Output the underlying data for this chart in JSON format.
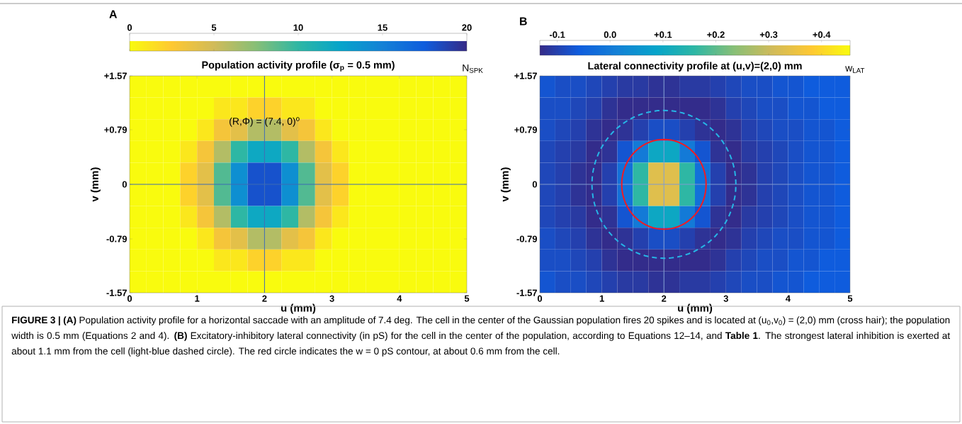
{
  "chart_data": [
    {
      "type": "heatmap",
      "title": "Population activity profile (σ$_{p}$ = 0.5 mm)",
      "xlabel": "u (mm)",
      "ylabel": "v (mm)",
      "clabel": "N$_{SPK}$",
      "annotations": [
        "A",
        "(R,Φ) = (7.4, 0)$^{o}$"
      ],
      "x": [
        0.125,
        0.375,
        0.625,
        0.875,
        1.125,
        1.375,
        1.625,
        1.875,
        2.125,
        2.375,
        2.625,
        2.875,
        3.125,
        3.375,
        3.625,
        3.875,
        4.125,
        4.375,
        4.625,
        4.875
      ],
      "y": [
        1.413,
        1.099,
        0.785,
        0.471,
        0.157,
        -0.157,
        -0.471,
        -0.785,
        -1.099,
        -1.413
      ],
      "xlim": [
        0,
        5
      ],
      "xticks": [
        0,
        1,
        2,
        3,
        4,
        5
      ],
      "ylim": [
        -1.57,
        1.57
      ],
      "yticks": [
        {
          "value": -1.57,
          "label": "-1.57"
        },
        {
          "value": -0.79,
          "label": "-0.79"
        },
        0,
        {
          "value": 0.79,
          "label": "+0.79"
        },
        {
          "value": 1.57,
          "label": "+1.57"
        }
      ],
      "clim": [
        0,
        20
      ],
      "cticks": [
        0,
        5,
        10,
        15,
        20
      ],
      "colors": [
        "#f9fb0e",
        "#fec832",
        "#d1bb59",
        "#87bf77",
        "#2eb7a4",
        "#06a4ca",
        "#1481d6",
        "#0f5cdd",
        "#352a87"
      ],
      "ref_lines": [
        {
          "axis": "x",
          "value": 2,
          "color": "#3d6bb3"
        },
        {
          "axis": "y",
          "value": 0,
          "color": "#3d6bb3"
        }
      ],
      "cells": [
        [
          0,
          0,
          0,
          0,
          0,
          0,
          0,
          0,
          0,
          0,
          0,
          0,
          0,
          0,
          0,
          0,
          0,
          0,
          0,
          0
        ],
        [
          0,
          0,
          0,
          0,
          0,
          1,
          1,
          2,
          2,
          1,
          1,
          0,
          0,
          0,
          0,
          0,
          0,
          0,
          0,
          0
        ],
        [
          0,
          0,
          0,
          0,
          1,
          3,
          4,
          6,
          6,
          4,
          3,
          1,
          0,
          0,
          0,
          0,
          0,
          0,
          0,
          0
        ],
        [
          0,
          0,
          0,
          1,
          3,
          6,
          10,
          12,
          12,
          10,
          6,
          3,
          1,
          0,
          0,
          0,
          0,
          0,
          0,
          0
        ],
        [
          0,
          0,
          0,
          2,
          4,
          9,
          14,
          18,
          18,
          14,
          9,
          4,
          2,
          0,
          0,
          0,
          0,
          0,
          0,
          0
        ],
        [
          0,
          0,
          0,
          2,
          4,
          9,
          14,
          18,
          18,
          14,
          9,
          4,
          2,
          0,
          0,
          0,
          0,
          0,
          0,
          0
        ],
        [
          0,
          0,
          0,
          1,
          3,
          6,
          10,
          12,
          12,
          10,
          6,
          3,
          1,
          0,
          0,
          0,
          0,
          0,
          0,
          0
        ],
        [
          0,
          0,
          0,
          0,
          1,
          3,
          4,
          6,
          6,
          4,
          3,
          1,
          0,
          0,
          0,
          0,
          0,
          0,
          0,
          0
        ],
        [
          0,
          0,
          0,
          0,
          0,
          1,
          1,
          2,
          2,
          1,
          1,
          0,
          0,
          0,
          0,
          0,
          0,
          0,
          0,
          0
        ],
        [
          0,
          0,
          0,
          0,
          0,
          0,
          0,
          0,
          0,
          0,
          0,
          0,
          0,
          0,
          0,
          0,
          0,
          0,
          0,
          0
        ]
      ]
    },
    {
      "type": "heatmap",
      "title": "Lateral connectivity profile at (u,v)=(2,0) mm",
      "xlabel": "u (mm)",
      "ylabel": "v (mm)",
      "clabel": "w$_{LAT}$",
      "x": [
        0.125,
        0.375,
        0.625,
        0.875,
        1.125,
        1.375,
        1.625,
        1.875,
        2.125,
        2.375,
        2.625,
        2.875,
        3.125,
        3.375,
        3.625,
        3.875,
        4.125,
        4.375,
        4.625,
        4.875
      ],
      "y": [
        1.413,
        1.099,
        0.785,
        0.471,
        0.157,
        -0.157,
        -0.471,
        -0.785,
        -1.099,
        -1.413
      ],
      "annotations": [
        "B",
        "**FIGURE 3 | (A)** Population activity profile for a horizontal saccade with an amplitude of 7.4 deg. The cell in the center of the Gaussian population fires 20 spikes and is located at (u$_{0}$,v$_{0}$) = (2,0) mm (cross hair); the population width is 0.5 mm (Equations 2 and 4). **(B)** Excitatory-inhibitory lateral connectivity (in pS) for the cell in the center of the population, according to Equations 12–14, and **Table 1**. The strongest lateral inhibition is exerted at about 1.1 mm from the cell (light-blue dashed circle). The red circle indicates the w = 0 pS contour, at about 0.6 mm from the cell."
      ],
      "xlim": [
        0,
        5
      ],
      "xticks": [
        0,
        1,
        2,
        3,
        4,
        5
      ],
      "ylim": [
        -1.57,
        1.57
      ],
      "yticks": [
        {
          "value": -1.57,
          "label": "-1.57"
        },
        {
          "value": -0.79,
          "label": "-0.79"
        },
        0,
        {
          "value": 0.79,
          "label": "+0.79"
        },
        {
          "value": 1.57,
          "label": "+1.57"
        }
      ],
      "clim": [
        -0.133,
        0.454
      ],
      "cticks": [
        {
          "value": -0.1,
          "label": "-0.1"
        },
        {
          "value": 0,
          "label": "0.0"
        },
        {
          "value": 0.1,
          "label": "+0.1"
        },
        {
          "value": 0.2,
          "label": "+0.2"
        },
        {
          "value": 0.3,
          "label": "+0.3"
        },
        {
          "value": 0.4,
          "label": "+0.4"
        }
      ],
      "colors": [
        "#352a87",
        "#0f5cdd",
        "#1481d6",
        "#06a4ca",
        "#2eb7a4",
        "#87bf77",
        "#d1bb59",
        "#fec832",
        "#f9fb0e"
      ],
      "ref_lines": [
        {
          "axis": "x",
          "value": 2,
          "color": "#7f9bd0"
        },
        {
          "axis": "y",
          "value": 0,
          "color": "#7f9bd0"
        }
      ],
      "cells": [
        [
          -0.07,
          -0.08,
          -0.08,
          -0.09,
          -0.1,
          -0.11,
          -0.11,
          -0.12,
          -0.12,
          -0.11,
          -0.11,
          -0.1,
          -0.09,
          -0.08,
          -0.08,
          -0.07,
          -0.07,
          -0.06,
          -0.06,
          -0.06
        ],
        [
          -0.08,
          -0.08,
          -0.09,
          -0.1,
          -0.12,
          -0.13,
          -0.13,
          -0.13,
          -0.13,
          -0.13,
          -0.13,
          -0.12,
          -0.1,
          -0.09,
          -0.08,
          -0.08,
          -0.07,
          -0.07,
          -0.06,
          -0.06
        ],
        [
          -0.08,
          -0.09,
          -0.1,
          -0.12,
          -0.13,
          -0.12,
          -0.1,
          -0.08,
          -0.08,
          -0.1,
          -0.12,
          -0.13,
          -0.12,
          -0.1,
          -0.09,
          -0.08,
          -0.08,
          -0.07,
          -0.07,
          -0.06
        ],
        [
          -0.09,
          -0.1,
          -0.11,
          -0.13,
          -0.12,
          -0.07,
          0,
          0.1,
          0.1,
          0,
          -0.07,
          -0.12,
          -0.13,
          -0.11,
          -0.1,
          -0.09,
          -0.08,
          -0.07,
          -0.07,
          -0.06
        ],
        [
          -0.09,
          -0.1,
          -0.12,
          -0.13,
          -0.1,
          -0.02,
          0.16,
          0.33,
          0.33,
          0.16,
          -0.02,
          -0.1,
          -0.13,
          -0.12,
          -0.1,
          -0.09,
          -0.08,
          -0.07,
          -0.07,
          -0.06
        ],
        [
          -0.09,
          -0.1,
          -0.12,
          -0.13,
          -0.1,
          -0.02,
          0.16,
          0.33,
          0.33,
          0.16,
          -0.02,
          -0.1,
          -0.13,
          -0.12,
          -0.1,
          -0.09,
          -0.08,
          -0.07,
          -0.07,
          -0.06
        ],
        [
          -0.09,
          -0.1,
          -0.11,
          -0.13,
          -0.12,
          -0.07,
          0,
          0.1,
          0.1,
          0,
          -0.07,
          -0.12,
          -0.13,
          -0.11,
          -0.1,
          -0.09,
          -0.08,
          -0.07,
          -0.07,
          -0.06
        ],
        [
          -0.08,
          -0.09,
          -0.1,
          -0.12,
          -0.13,
          -0.12,
          -0.1,
          -0.08,
          -0.08,
          -0.1,
          -0.12,
          -0.13,
          -0.12,
          -0.1,
          -0.09,
          -0.08,
          -0.08,
          -0.07,
          -0.07,
          -0.06
        ],
        [
          -0.08,
          -0.08,
          -0.09,
          -0.1,
          -0.12,
          -0.13,
          -0.13,
          -0.13,
          -0.13,
          -0.13,
          -0.13,
          -0.12,
          -0.1,
          -0.09,
          -0.08,
          -0.08,
          -0.07,
          -0.07,
          -0.06,
          -0.06
        ],
        [
          -0.07,
          -0.08,
          -0.08,
          -0.09,
          -0.1,
          -0.11,
          -0.11,
          -0.12,
          -0.12,
          -0.11,
          -0.11,
          -0.1,
          -0.09,
          -0.08,
          -0.08,
          -0.07,
          -0.07,
          -0.06,
          -0.06,
          -0.06
        ]
      ]
    }
  ]
}
